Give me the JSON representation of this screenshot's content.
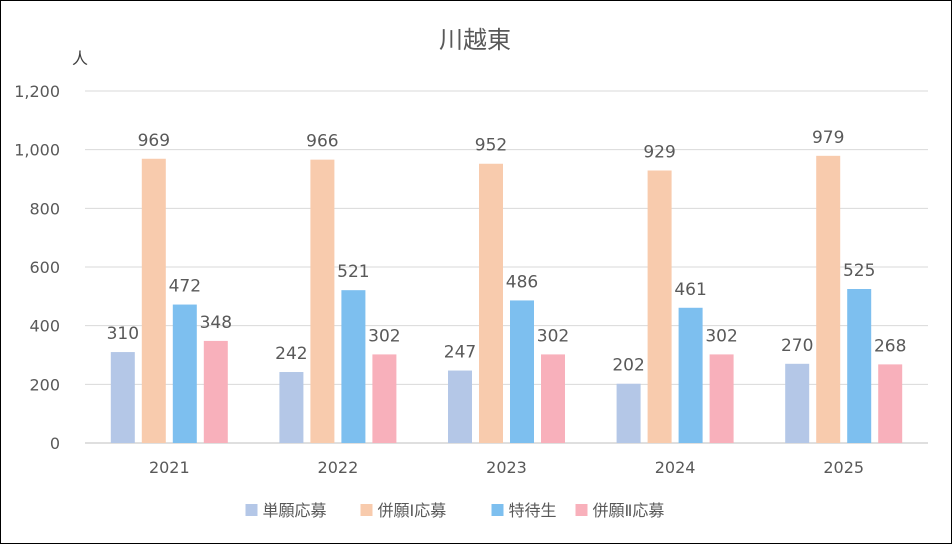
{
  "chart_data": {
    "type": "bar",
    "title": "川越東",
    "ylabel": "人",
    "xlabel": "",
    "categories": [
      "2021",
      "2022",
      "2023",
      "2024",
      "2025"
    ],
    "series": [
      {
        "name": "単願応募",
        "values": [
          310,
          242,
          247,
          202,
          270
        ],
        "color": "#B4C7E7"
      },
      {
        "name": "併願Ⅰ応募",
        "values": [
          969,
          966,
          952,
          929,
          979
        ],
        "color": "#F8CBAD"
      },
      {
        "name": "特待生",
        "values": [
          472,
          521,
          486,
          461,
          525
        ],
        "color": "#7DBFEF"
      },
      {
        "name": "併願Ⅱ応募",
        "values": [
          348,
          302,
          302,
          302,
          268
        ],
        "color": "#F8B0BB"
      }
    ],
    "ylim": [
      0,
      1200
    ],
    "yticks": [
      0,
      200,
      400,
      600,
      800,
      1000,
      1200
    ],
    "ytick_labels": [
      "0",
      "200",
      "400",
      "600",
      "800",
      "1,000",
      "1,200"
    ],
    "grid": true,
    "legend": "bottom",
    "data_labels": true
  }
}
